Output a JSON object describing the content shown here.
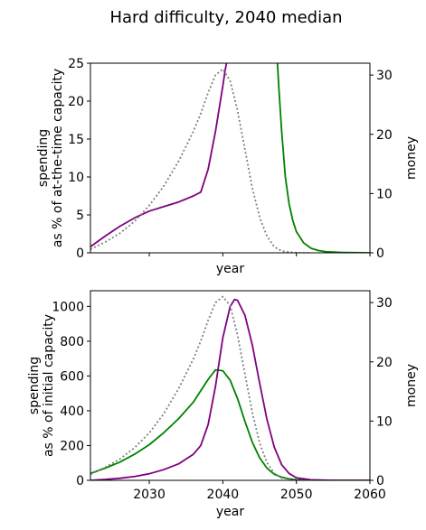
{
  "figure": {
    "title": "Hard difficulty, 2040 median"
  },
  "colors": {
    "purple": "#800080",
    "green": "#008000",
    "gray": "#808080"
  },
  "chart_data": [
    {
      "type": "line",
      "panel": "top",
      "xlabel": "year",
      "ylabel_left": [
        "spending",
        "as % of at-the-time capacity"
      ],
      "ylabel_right": "money",
      "xlim": [
        2022,
        2060
      ],
      "ylim_left": [
        0,
        25
      ],
      "ylim_right": [
        0,
        32
      ],
      "yticks_left": [
        0,
        5,
        10,
        15,
        20,
        25
      ],
      "yticks_right": [
        0,
        10,
        20,
        30
      ],
      "xticks": [
        2030,
        2040,
        2050,
        2060
      ],
      "xtick_labels_shown": false,
      "series": [
        {
          "axis": "left",
          "color": "purple",
          "style": "solid",
          "x": [
            2022,
            2024,
            2026,
            2028,
            2030,
            2032,
            2034,
            2036,
            2037,
            2038,
            2038.5,
            2039,
            2039.5,
            2040,
            2040.3,
            2040.6
          ],
          "y": [
            0.8,
            2.2,
            3.5,
            4.6,
            5.5,
            6.1,
            6.7,
            7.5,
            8.0,
            11.0,
            13.5,
            16.0,
            19.0,
            22.0,
            24.0,
            25.5
          ]
        },
        {
          "axis": "left",
          "color": "green",
          "style": "solid",
          "x": [
            2047.4,
            2047.6,
            2048,
            2048.5,
            2049,
            2049.5,
            2050,
            2051,
            2052,
            2053,
            2054,
            2056,
            2058,
            2060
          ],
          "y": [
            25.5,
            22.0,
            16.0,
            10.0,
            6.5,
            4.3,
            2.8,
            1.3,
            0.6,
            0.3,
            0.15,
            0.05,
            0.02,
            0.0
          ]
        },
        {
          "axis": "right",
          "color": "gray",
          "style": "dotted",
          "x": [
            2022,
            2024,
            2026,
            2028,
            2030,
            2032,
            2034,
            2036,
            2037,
            2038,
            2039,
            2040,
            2041,
            2042,
            2043,
            2044,
            2045,
            2046,
            2047,
            2048,
            2050,
            2052
          ],
          "y": [
            0.6,
            1.8,
            3.3,
            5.3,
            8.0,
            11.3,
            15.5,
            20.5,
            23.5,
            27.0,
            30.0,
            31.0,
            29.0,
            24.0,
            17.5,
            11.0,
            6.0,
            2.8,
            1.0,
            0.3,
            0.0,
            0.0
          ]
        }
      ]
    },
    {
      "type": "line",
      "panel": "bottom",
      "xlabel": "year",
      "ylabel_left": [
        "spending",
        "as % of initial capacity"
      ],
      "ylabel_right": "money",
      "xlim": [
        2022,
        2060
      ],
      "ylim_left": [
        0,
        1090
      ],
      "ylim_right": [
        0,
        32
      ],
      "yticks_left": [
        0,
        200,
        400,
        600,
        800,
        1000
      ],
      "yticks_right": [
        0,
        10,
        20,
        30
      ],
      "xticks": [
        2030,
        2040,
        2050,
        2060
      ],
      "xtick_labels": [
        "2030",
        "2040",
        "2050",
        "2060"
      ],
      "series": [
        {
          "axis": "left",
          "color": "green",
          "style": "solid",
          "x": [
            2022,
            2024,
            2026,
            2028,
            2030,
            2032,
            2034,
            2036,
            2038,
            2039,
            2040,
            2041,
            2042,
            2043,
            2044,
            2045,
            2046,
            2047,
            2048,
            2049,
            2050,
            2052,
            2055,
            2060
          ],
          "y": [
            40,
            70,
            105,
            150,
            205,
            275,
            355,
            450,
            580,
            635,
            630,
            575,
            470,
            340,
            220,
            130,
            70,
            35,
            18,
            9,
            4,
            1,
            0,
            0
          ]
        },
        {
          "axis": "left",
          "color": "purple",
          "style": "solid",
          "x": [
            2022,
            2024,
            2026,
            2028,
            2030,
            2032,
            2034,
            2036,
            2037,
            2038,
            2039,
            2040,
            2041,
            2041.6,
            2042,
            2043,
            2044,
            2045,
            2046,
            2047,
            2048,
            2049,
            2050,
            2052,
            2055,
            2060
          ],
          "y": [
            0,
            5,
            12,
            22,
            38,
            62,
            95,
            150,
            200,
            320,
            540,
            820,
            1000,
            1040,
            1035,
            950,
            780,
            560,
            350,
            190,
            90,
            40,
            15,
            3,
            0,
            0
          ]
        },
        {
          "axis": "right",
          "color": "gray",
          "style": "dotted",
          "x": [
            2022,
            2024,
            2026,
            2028,
            2030,
            2032,
            2034,
            2036,
            2037,
            2038,
            2039,
            2040,
            2041,
            2042,
            2043,
            2044,
            2045,
            2046,
            2047,
            2048,
            2050,
            2052
          ],
          "y": [
            1.0,
            2.2,
            3.6,
            5.5,
            8.0,
            11.3,
            15.5,
            20.5,
            23.5,
            27.0,
            30.0,
            31.0,
            29.5,
            24.5,
            18.0,
            11.5,
            6.3,
            3.0,
            1.2,
            0.4,
            0.05,
            0.0
          ]
        }
      ]
    }
  ]
}
